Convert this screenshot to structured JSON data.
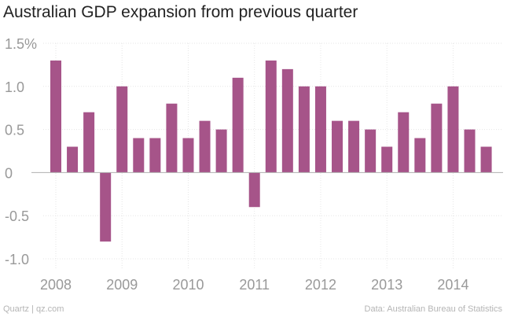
{
  "chart_data": {
    "type": "bar",
    "title": "Australian GDP expansion from previous quarter",
    "xlabel": "",
    "ylabel": "",
    "ylim": [
      -1.0,
      1.5
    ],
    "yticks": [
      {
        "value": 1.5,
        "label": "1.5%"
      },
      {
        "value": 1.0,
        "label": "1.0"
      },
      {
        "value": 0.5,
        "label": "0.5"
      },
      {
        "value": 0,
        "label": "0"
      },
      {
        "value": -0.5,
        "label": "-0.5"
      },
      {
        "value": -1.0,
        "label": "-1.0"
      }
    ],
    "x_tick_labels": [
      {
        "label": "2008",
        "index": 0
      },
      {
        "label": "2009",
        "index": 4
      },
      {
        "label": "2010",
        "index": 8
      },
      {
        "label": "2011",
        "index": 12
      },
      {
        "label": "2012",
        "index": 16
      },
      {
        "label": "2013",
        "index": 20
      },
      {
        "label": "2014",
        "index": 24
      }
    ],
    "categories": [
      "2008 Q1",
      "2008 Q2",
      "2008 Q3",
      "2008 Q4",
      "2009 Q1",
      "2009 Q2",
      "2009 Q3",
      "2009 Q4",
      "2010 Q1",
      "2010 Q2",
      "2010 Q3",
      "2010 Q4",
      "2011 Q1",
      "2011 Q2",
      "2011 Q3",
      "2011 Q4",
      "2012 Q1",
      "2012 Q2",
      "2012 Q3",
      "2012 Q4",
      "2013 Q1",
      "2013 Q2",
      "2013 Q3",
      "2013 Q4",
      "2014 Q1",
      "2014 Q2",
      "2014 Q3"
    ],
    "values": [
      1.3,
      0.3,
      0.7,
      -0.8,
      1.0,
      0.4,
      0.4,
      0.8,
      0.4,
      0.6,
      0.5,
      1.1,
      -0.4,
      1.3,
      1.2,
      1.0,
      1.0,
      0.6,
      0.6,
      0.5,
      0.3,
      0.7,
      0.4,
      0.8,
      1.0,
      0.5,
      0.3
    ],
    "bar_color": "#a65489",
    "grid": true
  },
  "footer": {
    "source_left": "Quartz | qz.com",
    "source_right": "Data: Australian Bureau of Statistics"
  }
}
